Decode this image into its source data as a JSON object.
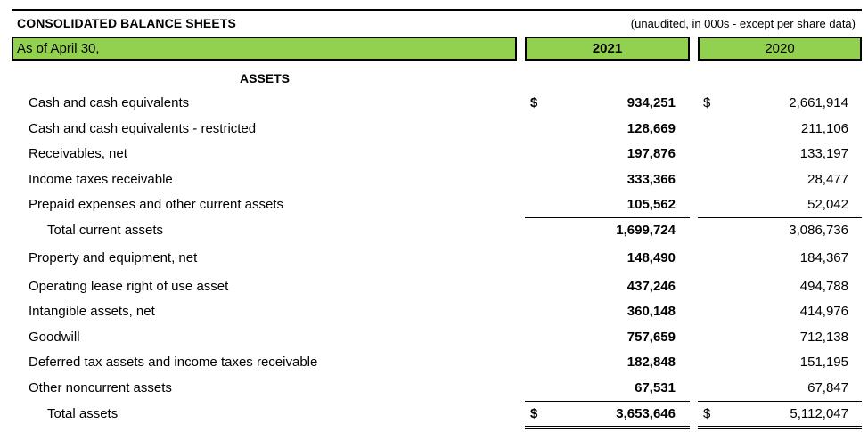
{
  "header": {
    "title": "CONSOLIDATED BALANCE SHEETS",
    "subtitle": "(unaudited, in 000s - except per share data)",
    "as_of": "As of April 30,",
    "col_current": "2021",
    "col_prior": "2020"
  },
  "section": "ASSETS",
  "rows": [
    {
      "label": "Cash and cash equivalents",
      "cur1": "$",
      "v2021": "934,251",
      "cur2": "$",
      "v2020": "2,661,914"
    },
    {
      "label": "Cash and cash equivalents - restricted",
      "cur1": "",
      "v2021": "128,669",
      "cur2": "",
      "v2020": "211,106"
    },
    {
      "label": "Receivables, net",
      "cur1": "",
      "v2021": "197,876",
      "cur2": "",
      "v2020": "133,197"
    },
    {
      "label": "Income taxes receivable",
      "cur1": "",
      "v2021": "333,366",
      "cur2": "",
      "v2020": "28,477"
    },
    {
      "label": "Prepaid expenses and other current assets",
      "cur1": "",
      "v2021": "105,562",
      "cur2": "",
      "v2020": "52,042"
    },
    {
      "label": "Total current assets",
      "cur1": "",
      "v2021": "1,699,724",
      "cur2": "",
      "v2020": "3,086,736"
    },
    {
      "label": "Property and equipment, net",
      "cur1": "",
      "v2021": "148,490",
      "cur2": "",
      "v2020": "184,367"
    },
    {
      "label": "Operating lease right of use asset",
      "cur1": "",
      "v2021": "437,246",
      "cur2": "",
      "v2020": "494,788"
    },
    {
      "label": "Intangible assets, net",
      "cur1": "",
      "v2021": "360,148",
      "cur2": "",
      "v2020": "414,976"
    },
    {
      "label": "Goodwill",
      "cur1": "",
      "v2021": "757,659",
      "cur2": "",
      "v2020": "712,138"
    },
    {
      "label": "Deferred tax assets and income taxes receivable",
      "cur1": "",
      "v2021": "182,848",
      "cur2": "",
      "v2020": "151,195"
    },
    {
      "label": "Other noncurrent assets",
      "cur1": "",
      "v2021": "67,531",
      "cur2": "",
      "v2020": "67,847"
    },
    {
      "label": "Total assets",
      "cur1": "$",
      "v2021": "3,653,646",
      "cur2": "$",
      "v2020": "5,112,047"
    }
  ]
}
